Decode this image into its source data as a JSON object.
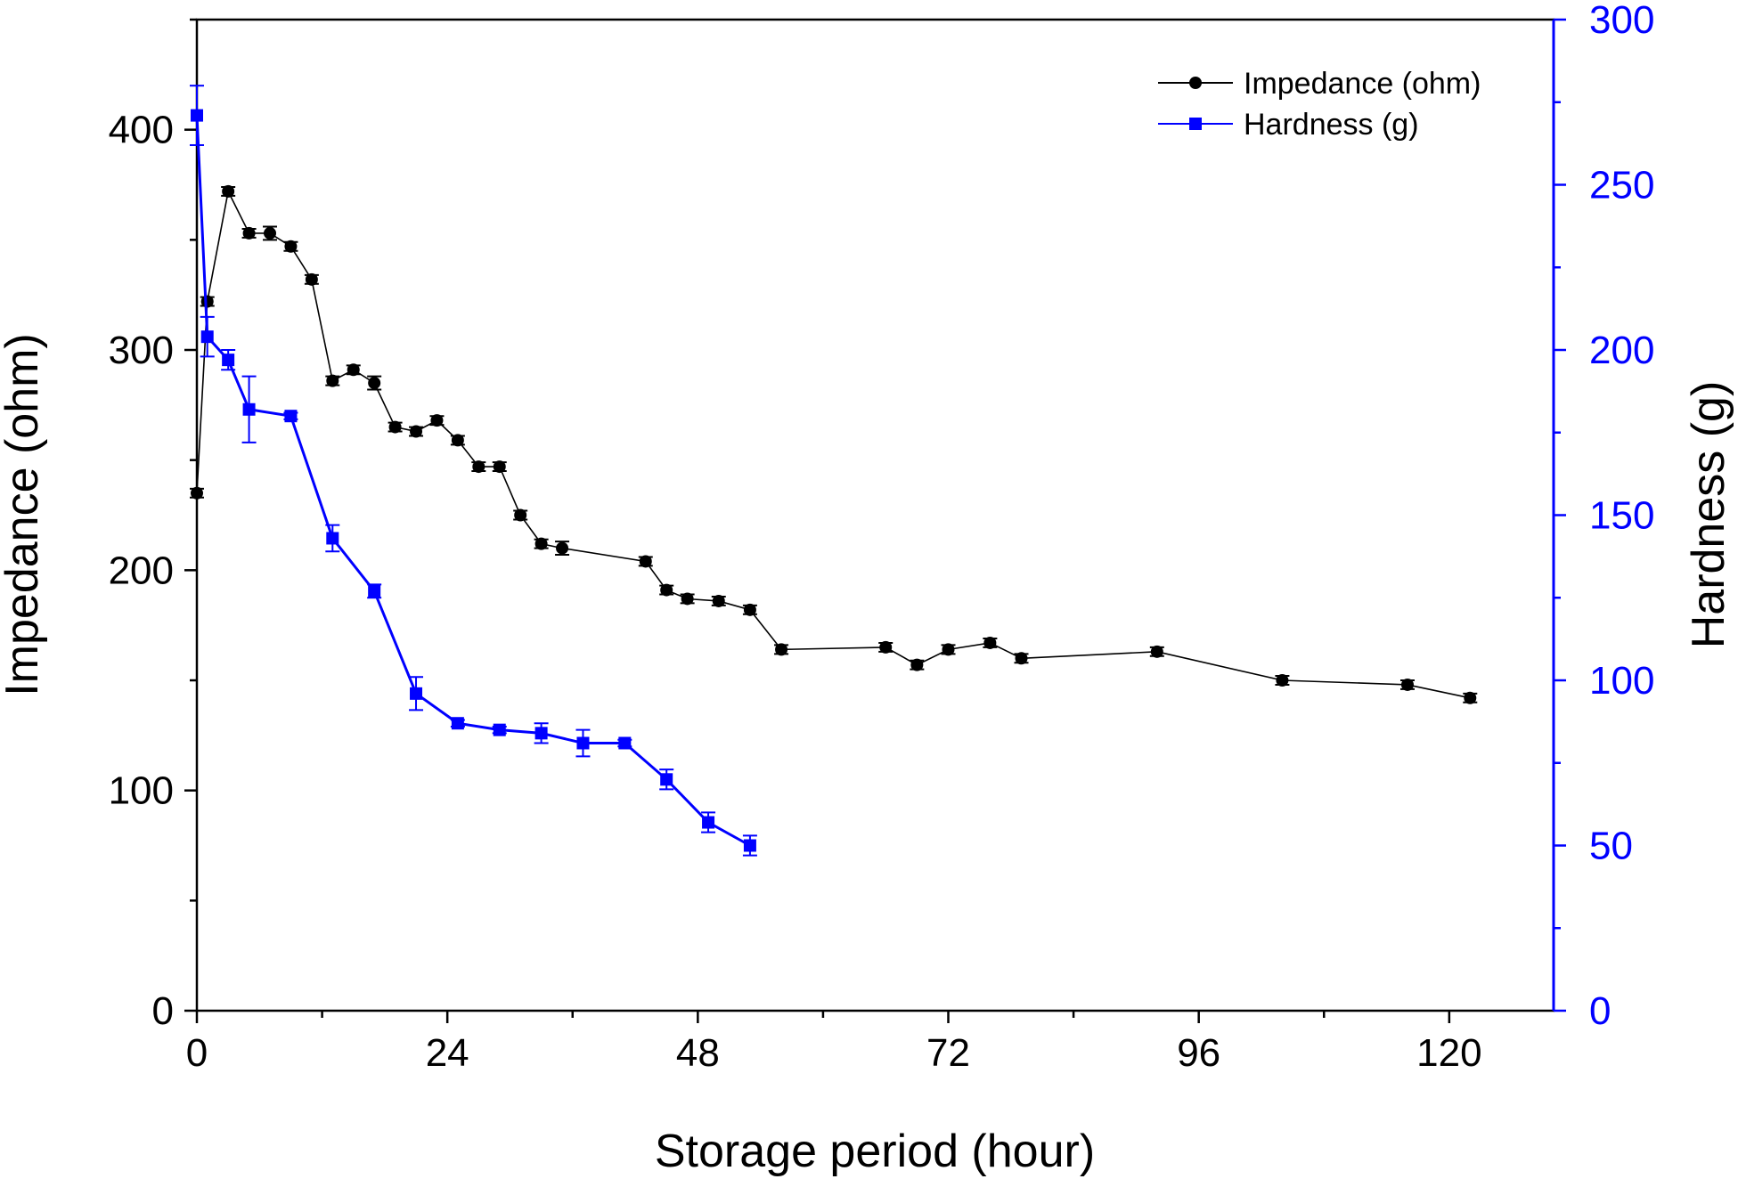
{
  "chart_data": {
    "type": "line",
    "xlabel": "Storage period (hour)",
    "ylabel_left": "Impedance (ohm)",
    "ylabel_right": "Hardness (g)",
    "xlim": [
      0,
      130
    ],
    "xticks": [
      0,
      24,
      48,
      72,
      96,
      120
    ],
    "ylim_left": [
      0,
      450
    ],
    "yticks_left": [
      0,
      100,
      200,
      300,
      400
    ],
    "ylim_right": [
      0,
      300
    ],
    "yticks_right": [
      0,
      50,
      100,
      150,
      200,
      250,
      300
    ],
    "grid": false,
    "legend_position": "top-right",
    "series": [
      {
        "name": "Impedance (ohm)",
        "axis": "left",
        "color": "#000000",
        "marker": "circle",
        "points": [
          {
            "x": 0,
            "y": 235,
            "err": 2
          },
          {
            "x": 1,
            "y": 322,
            "err": 2
          },
          {
            "x": 3,
            "y": 372,
            "err": 2
          },
          {
            "x": 5,
            "y": 353,
            "err": 2
          },
          {
            "x": 7,
            "y": 353,
            "err": 3
          },
          {
            "x": 9,
            "y": 347,
            "err": 2
          },
          {
            "x": 11,
            "y": 332,
            "err": 2
          },
          {
            "x": 13,
            "y": 286,
            "err": 2
          },
          {
            "x": 15,
            "y": 291,
            "err": 2
          },
          {
            "x": 17,
            "y": 285,
            "err": 3
          },
          {
            "x": 19,
            "y": 265,
            "err": 2
          },
          {
            "x": 21,
            "y": 263,
            "err": 2
          },
          {
            "x": 23,
            "y": 268,
            "err": 2
          },
          {
            "x": 25,
            "y": 259,
            "err": 2
          },
          {
            "x": 27,
            "y": 247,
            "err": 2
          },
          {
            "x": 29,
            "y": 247,
            "err": 2
          },
          {
            "x": 31,
            "y": 225,
            "err": 2
          },
          {
            "x": 33,
            "y": 212,
            "err": 2
          },
          {
            "x": 35,
            "y": 210,
            "err": 3
          },
          {
            "x": 43,
            "y": 204,
            "err": 2
          },
          {
            "x": 45,
            "y": 191,
            "err": 2
          },
          {
            "x": 47,
            "y": 187,
            "err": 2
          },
          {
            "x": 50,
            "y": 186,
            "err": 2
          },
          {
            "x": 53,
            "y": 182,
            "err": 2
          },
          {
            "x": 56,
            "y": 164,
            "err": 2
          },
          {
            "x": 66,
            "y": 165,
            "err": 2
          },
          {
            "x": 69,
            "y": 157,
            "err": 2
          },
          {
            "x": 72,
            "y": 164,
            "err": 2
          },
          {
            "x": 76,
            "y": 167,
            "err": 2
          },
          {
            "x": 79,
            "y": 160,
            "err": 2
          },
          {
            "x": 92,
            "y": 163,
            "err": 2
          },
          {
            "x": 104,
            "y": 150,
            "err": 2
          },
          {
            "x": 116,
            "y": 148,
            "err": 2
          },
          {
            "x": 122,
            "y": 142,
            "err": 2
          }
        ]
      },
      {
        "name": "Hardness (g)",
        "axis": "right",
        "color": "#0000ff",
        "marker": "square",
        "points": [
          {
            "x": 0,
            "y": 271,
            "err": 9
          },
          {
            "x": 1,
            "y": 204,
            "err": 6
          },
          {
            "x": 3,
            "y": 197,
            "err": 3
          },
          {
            "x": 5,
            "y": 182,
            "err": 10
          },
          {
            "x": 9,
            "y": 180,
            "err": 1
          },
          {
            "x": 13,
            "y": 143,
            "err": 4
          },
          {
            "x": 17,
            "y": 127,
            "err": 2
          },
          {
            "x": 21,
            "y": 96,
            "err": 5
          },
          {
            "x": 25,
            "y": 87,
            "err": 1
          },
          {
            "x": 29,
            "y": 85,
            "err": 1
          },
          {
            "x": 33,
            "y": 84,
            "err": 3
          },
          {
            "x": 37,
            "y": 81,
            "err": 4
          },
          {
            "x": 41,
            "y": 81,
            "err": 1
          },
          {
            "x": 45,
            "y": 70,
            "err": 3
          },
          {
            "x": 49,
            "y": 57,
            "err": 3
          },
          {
            "x": 53,
            "y": 50,
            "err": 3
          }
        ]
      }
    ]
  }
}
